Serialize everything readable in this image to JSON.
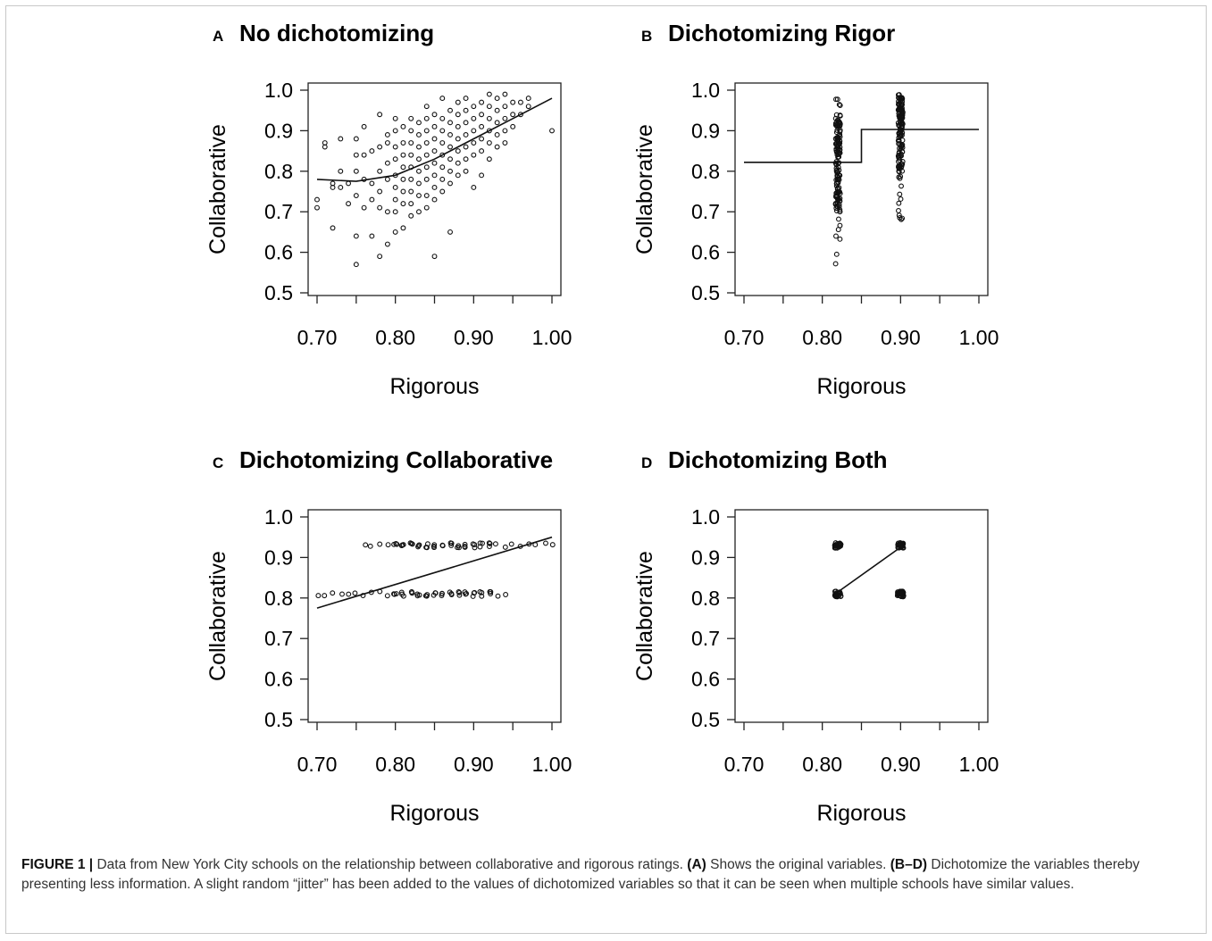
{
  "chart_data": [
    {
      "panel": "A",
      "title": "No dichotomizing",
      "type": "scatter",
      "xlabel": "Rigorous",
      "ylabel": "Collaborative",
      "xlim": [
        0.7,
        1.0
      ],
      "ylim": [
        0.5,
        1.0
      ],
      "xticks": [
        "0.70",
        "0.80",
        "0.90",
        "1.00"
      ],
      "yticks": [
        "0.5",
        "0.6",
        "0.7",
        "0.8",
        "0.9",
        "1.0"
      ],
      "points": [
        [
          0.7,
          0.73
        ],
        [
          0.7,
          0.71
        ],
        [
          0.71,
          0.86
        ],
        [
          0.71,
          0.87
        ],
        [
          0.72,
          0.66
        ],
        [
          0.72,
          0.76
        ],
        [
          0.72,
          0.77
        ],
        [
          0.73,
          0.76
        ],
        [
          0.73,
          0.8
        ],
        [
          0.73,
          0.88
        ],
        [
          0.74,
          0.72
        ],
        [
          0.74,
          0.77
        ],
        [
          0.75,
          0.57
        ],
        [
          0.75,
          0.64
        ],
        [
          0.75,
          0.74
        ],
        [
          0.75,
          0.8
        ],
        [
          0.75,
          0.84
        ],
        [
          0.75,
          0.88
        ],
        [
          0.76,
          0.71
        ],
        [
          0.76,
          0.78
        ],
        [
          0.76,
          0.84
        ],
        [
          0.76,
          0.91
        ],
        [
          0.77,
          0.64
        ],
        [
          0.77,
          0.73
        ],
        [
          0.77,
          0.77
        ],
        [
          0.77,
          0.85
        ],
        [
          0.78,
          0.59
        ],
        [
          0.78,
          0.71
        ],
        [
          0.78,
          0.75
        ],
        [
          0.78,
          0.8
        ],
        [
          0.78,
          0.86
        ],
        [
          0.78,
          0.94
        ],
        [
          0.79,
          0.62
        ],
        [
          0.79,
          0.7
        ],
        [
          0.79,
          0.78
        ],
        [
          0.79,
          0.82
        ],
        [
          0.79,
          0.87
        ],
        [
          0.79,
          0.89
        ],
        [
          0.8,
          0.65
        ],
        [
          0.8,
          0.7
        ],
        [
          0.8,
          0.73
        ],
        [
          0.8,
          0.76
        ],
        [
          0.8,
          0.79
        ],
        [
          0.8,
          0.83
        ],
        [
          0.8,
          0.86
        ],
        [
          0.8,
          0.9
        ],
        [
          0.8,
          0.93
        ],
        [
          0.81,
          0.66
        ],
        [
          0.81,
          0.72
        ],
        [
          0.81,
          0.75
        ],
        [
          0.81,
          0.78
        ],
        [
          0.81,
          0.81
        ],
        [
          0.81,
          0.84
        ],
        [
          0.81,
          0.87
        ],
        [
          0.81,
          0.91
        ],
        [
          0.82,
          0.69
        ],
        [
          0.82,
          0.72
        ],
        [
          0.82,
          0.75
        ],
        [
          0.82,
          0.78
        ],
        [
          0.82,
          0.81
        ],
        [
          0.82,
          0.84
        ],
        [
          0.82,
          0.87
        ],
        [
          0.82,
          0.9
        ],
        [
          0.82,
          0.93
        ],
        [
          0.83,
          0.7
        ],
        [
          0.83,
          0.74
        ],
        [
          0.83,
          0.77
        ],
        [
          0.83,
          0.8
        ],
        [
          0.83,
          0.83
        ],
        [
          0.83,
          0.86
        ],
        [
          0.83,
          0.89
        ],
        [
          0.83,
          0.92
        ],
        [
          0.84,
          0.71
        ],
        [
          0.84,
          0.74
        ],
        [
          0.84,
          0.78
        ],
        [
          0.84,
          0.81
        ],
        [
          0.84,
          0.84
        ],
        [
          0.84,
          0.87
        ],
        [
          0.84,
          0.9
        ],
        [
          0.84,
          0.93
        ],
        [
          0.84,
          0.96
        ],
        [
          0.85,
          0.59
        ],
        [
          0.85,
          0.73
        ],
        [
          0.85,
          0.76
        ],
        [
          0.85,
          0.79
        ],
        [
          0.85,
          0.82
        ],
        [
          0.85,
          0.85
        ],
        [
          0.85,
          0.88
        ],
        [
          0.85,
          0.91
        ],
        [
          0.85,
          0.94
        ],
        [
          0.86,
          0.75
        ],
        [
          0.86,
          0.78
        ],
        [
          0.86,
          0.81
        ],
        [
          0.86,
          0.84
        ],
        [
          0.86,
          0.87
        ],
        [
          0.86,
          0.9
        ],
        [
          0.86,
          0.93
        ],
        [
          0.86,
          0.98
        ],
        [
          0.87,
          0.65
        ],
        [
          0.87,
          0.77
        ],
        [
          0.87,
          0.8
        ],
        [
          0.87,
          0.83
        ],
        [
          0.87,
          0.86
        ],
        [
          0.87,
          0.89
        ],
        [
          0.87,
          0.92
        ],
        [
          0.87,
          0.95
        ],
        [
          0.88,
          0.79
        ],
        [
          0.88,
          0.82
        ],
        [
          0.88,
          0.85
        ],
        [
          0.88,
          0.88
        ],
        [
          0.88,
          0.91
        ],
        [
          0.88,
          0.94
        ],
        [
          0.88,
          0.97
        ],
        [
          0.89,
          0.8
        ],
        [
          0.89,
          0.83
        ],
        [
          0.89,
          0.86
        ],
        [
          0.89,
          0.89
        ],
        [
          0.89,
          0.92
        ],
        [
          0.89,
          0.95
        ],
        [
          0.89,
          0.98
        ],
        [
          0.9,
          0.76
        ],
        [
          0.9,
          0.84
        ],
        [
          0.9,
          0.87
        ],
        [
          0.9,
          0.9
        ],
        [
          0.9,
          0.93
        ],
        [
          0.9,
          0.96
        ],
        [
          0.91,
          0.79
        ],
        [
          0.91,
          0.85
        ],
        [
          0.91,
          0.88
        ],
        [
          0.91,
          0.91
        ],
        [
          0.91,
          0.94
        ],
        [
          0.91,
          0.97
        ],
        [
          0.92,
          0.83
        ],
        [
          0.92,
          0.87
        ],
        [
          0.92,
          0.9
        ],
        [
          0.92,
          0.93
        ],
        [
          0.92,
          0.96
        ],
        [
          0.92,
          0.99
        ],
        [
          0.93,
          0.86
        ],
        [
          0.93,
          0.89
        ],
        [
          0.93,
          0.92
        ],
        [
          0.93,
          0.95
        ],
        [
          0.93,
          0.98
        ],
        [
          0.94,
          0.87
        ],
        [
          0.94,
          0.9
        ],
        [
          0.94,
          0.93
        ],
        [
          0.94,
          0.96
        ],
        [
          0.94,
          0.99
        ],
        [
          0.95,
          0.91
        ],
        [
          0.95,
          0.94
        ],
        [
          0.95,
          0.97
        ],
        [
          0.96,
          0.94
        ],
        [
          0.96,
          0.97
        ],
        [
          0.97,
          0.96
        ],
        [
          0.97,
          0.98
        ],
        [
          1.0,
          0.9
        ]
      ],
      "fit_line": {
        "x": [
          0.7,
          0.75,
          0.8,
          0.85,
          0.9,
          0.95,
          1.0
        ],
        "y": [
          0.78,
          0.775,
          0.79,
          0.83,
          0.88,
          0.93,
          0.98
        ]
      }
    },
    {
      "panel": "B",
      "title": "Dichotomizing Rigor",
      "type": "scatter",
      "xlabel": "Rigorous",
      "ylabel": "Collaborative",
      "xlim": [
        0.7,
        1.0
      ],
      "ylim": [
        0.5,
        1.0
      ],
      "xticks": [
        "0.70",
        "0.80",
        "0.90",
        "1.00"
      ],
      "yticks": [
        "0.5",
        "0.6",
        "0.7",
        "0.8",
        "0.9",
        "1.0"
      ],
      "groups": [
        {
          "x": 0.82,
          "y_range": [
            0.57,
            0.98
          ],
          "dense_range": [
            0.7,
            0.94
          ]
        },
        {
          "x": 0.9,
          "y_range": [
            0.65,
            0.99
          ],
          "dense_range": [
            0.8,
            0.99
          ]
        }
      ],
      "step_line": {
        "x": [
          0.7,
          0.85,
          0.85,
          1.0
        ],
        "y": [
          0.822,
          0.822,
          0.903,
          0.903
        ]
      }
    },
    {
      "panel": "C",
      "title": "Dichotomizing Collaborative",
      "type": "scatter",
      "xlabel": "Rigorous",
      "ylabel": "Collaborative",
      "xlim": [
        0.7,
        1.0
      ],
      "ylim": [
        0.5,
        1.0
      ],
      "xticks": [
        "0.70",
        "0.80",
        "0.90",
        "1.00"
      ],
      "yticks": [
        "0.5",
        "0.6",
        "0.7",
        "0.8",
        "0.9",
        "1.0"
      ],
      "groups": [
        {
          "y": 0.93,
          "x_range": [
            0.76,
            1.0
          ]
        },
        {
          "y": 0.81,
          "x_range": [
            0.7,
            0.94
          ]
        }
      ],
      "fit_line": {
        "x": [
          0.7,
          1.0
        ],
        "y": [
          0.775,
          0.95
        ]
      }
    },
    {
      "panel": "D",
      "title": "Dichotomizing Both",
      "type": "scatter",
      "xlabel": "Rigorous",
      "ylabel": "Collaborative",
      "xlim": [
        0.7,
        1.0
      ],
      "ylim": [
        0.5,
        1.0
      ],
      "xticks": [
        "0.70",
        "0.80",
        "0.90",
        "1.00"
      ],
      "yticks": [
        "0.5",
        "0.6",
        "0.7",
        "0.8",
        "0.9",
        "1.0"
      ],
      "clusters": [
        [
          0.82,
          0.81
        ],
        [
          0.82,
          0.93
        ],
        [
          0.9,
          0.81
        ],
        [
          0.9,
          0.93
        ]
      ],
      "fit_line": {
        "x": [
          0.82,
          0.9
        ],
        "y": [
          0.815,
          0.925
        ]
      }
    }
  ],
  "caption": {
    "label": "FIGURE 1 |",
    "text1": " Data from New York City schools on the relationship between collaborative and rigorous ratings. ",
    "ref_a": "(A)",
    "text2": " Shows the original variables. ",
    "ref_bd": "(B–D)",
    "text3": " Dichotomize the variables thereby presenting less information. A slight random “jitter” has been added to the values of dichotomized variables so that it can be seen when multiple schools have similar values."
  }
}
